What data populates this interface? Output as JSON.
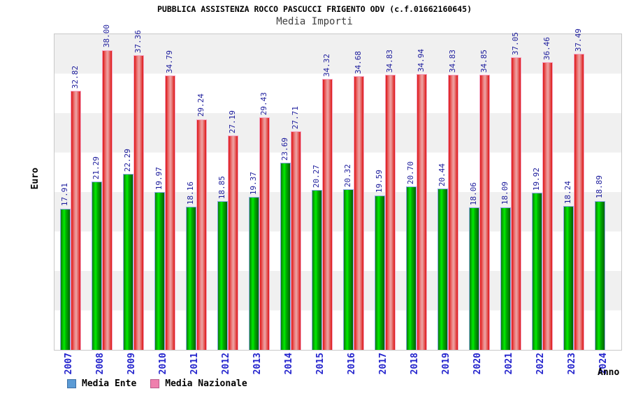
{
  "chart_data": {
    "type": "bar",
    "title": "PUBBLICA ASSISTENZA ROCCO PASCUCCI FRIGENTO ODV (c.f.01662160645)",
    "subtitle": "Media Importi",
    "xlabel": "Anno",
    "ylabel": "Euro",
    "ylim": [
      0,
      40
    ],
    "ytick_step": 5,
    "grid": "alternating gray/white horizontal bands every 5 units",
    "legend_position": "bottom-left",
    "categories": [
      "2007",
      "2008",
      "2009",
      "2010",
      "2011",
      "2012",
      "2013",
      "2014",
      "2015",
      "2016",
      "2017",
      "2018",
      "2019",
      "2020",
      "2021",
      "2022",
      "2023",
      "2024"
    ],
    "series": [
      {
        "name": "Media Ente",
        "values": [
          17.91,
          21.29,
          22.29,
          19.97,
          18.16,
          18.85,
          19.37,
          23.69,
          20.27,
          20.32,
          19.59,
          20.7,
          20.44,
          18.06,
          18.09,
          19.92,
          18.24,
          18.89
        ]
      },
      {
        "name": "Media Nazionale",
        "values": [
          32.82,
          38.0,
          37.36,
          34.79,
          29.24,
          27.19,
          29.43,
          27.71,
          34.32,
          34.68,
          34.83,
          34.94,
          34.83,
          34.85,
          37.05,
          36.46,
          37.49,
          null
        ]
      }
    ]
  },
  "legend": {
    "items": [
      {
        "label": "Media Ente",
        "swatch": "#5b9bd5",
        "swatch_border": "#3d6fa5"
      },
      {
        "label": "Media Nazionale",
        "swatch": "#ef7fad",
        "swatch_border": "#b85c8a"
      }
    ]
  },
  "colors": {
    "tick_label": "#2323cd",
    "value_label": "#1c1c9c",
    "subtitle_text": "#404040",
    "plot_border": "#c8c8c8",
    "band_gray": "#f0f0f0",
    "ente_gradient": [
      "#0d7d0d",
      "#00ee00",
      "#00b400",
      "#046004"
    ],
    "ente_border": "#8aa8e8",
    "nazionale_gradient": [
      "#dd1515",
      "#ee8585",
      "#eca4a4",
      "#dd1515"
    ],
    "nazionale_border": "#f5a5c5"
  }
}
